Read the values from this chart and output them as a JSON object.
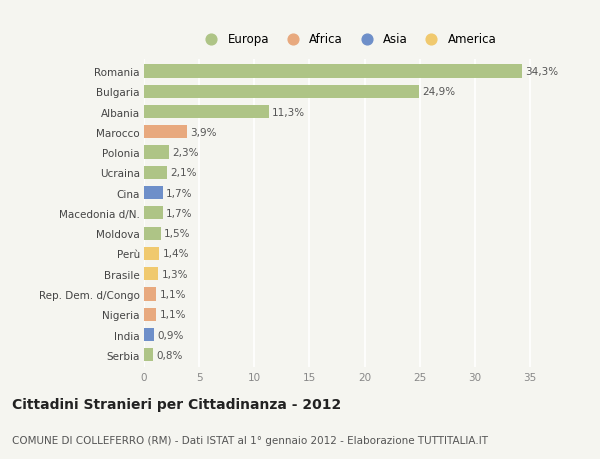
{
  "countries": [
    "Romania",
    "Bulgaria",
    "Albania",
    "Marocco",
    "Polonia",
    "Ucraina",
    "Cina",
    "Macedonia d/N.",
    "Moldova",
    "Perù",
    "Brasile",
    "Rep. Dem. d/Congo",
    "Nigeria",
    "India",
    "Serbia"
  ],
  "values": [
    34.3,
    24.9,
    11.3,
    3.9,
    2.3,
    2.1,
    1.7,
    1.7,
    1.5,
    1.4,
    1.3,
    1.1,
    1.1,
    0.9,
    0.8
  ],
  "labels": [
    "34,3%",
    "24,9%",
    "11,3%",
    "3,9%",
    "2,3%",
    "2,1%",
    "1,7%",
    "1,7%",
    "1,5%",
    "1,4%",
    "1,3%",
    "1,1%",
    "1,1%",
    "0,9%",
    "0,8%"
  ],
  "continents": [
    "Europa",
    "Europa",
    "Europa",
    "Africa",
    "Europa",
    "Europa",
    "Asia",
    "Europa",
    "Europa",
    "America",
    "America",
    "Africa",
    "Africa",
    "Asia",
    "Europa"
  ],
  "continent_colors": {
    "Europa": "#aec486",
    "Africa": "#e8a97e",
    "Asia": "#6e8fc9",
    "America": "#f0c96e"
  },
  "legend_order": [
    "Europa",
    "Africa",
    "Asia",
    "America"
  ],
  "xlim": [
    0,
    37
  ],
  "xticks": [
    0,
    5,
    10,
    15,
    20,
    25,
    30,
    35
  ],
  "title": "Cittadini Stranieri per Cittadinanza - 2012",
  "subtitle": "COMUNE DI COLLEFERRO (RM) - Dati ISTAT al 1° gennaio 2012 - Elaborazione TUTTITALIA.IT",
  "bg_color": "#f5f5f0",
  "bar_height": 0.65,
  "label_fontsize": 7.5,
  "ytick_fontsize": 7.5,
  "xtick_fontsize": 7.5,
  "title_fontsize": 10,
  "subtitle_fontsize": 7.5
}
